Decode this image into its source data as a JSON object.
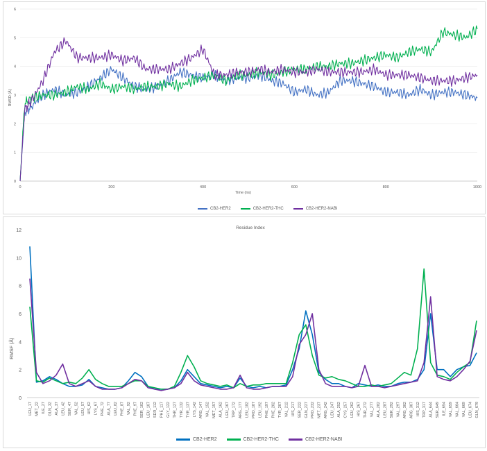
{
  "colors": {
    "cb2_her2": "#4472C4",
    "cb2_her2_thc": "#00B050",
    "cb2_her2_nabi": "#7030A0",
    "grid": "#e6e6e6",
    "axis": "#bfbfbf"
  },
  "chart_data": [
    {
      "type": "line",
      "xlabel": "Time (ns)",
      "ylabel": "RMSD (Å)",
      "xlim": [
        0,
        1000
      ],
      "ylim": [
        0,
        6
      ],
      "xticks": [
        "0",
        "200",
        "400",
        "600",
        "800",
        "1000"
      ],
      "yticks": [
        "0",
        "1",
        "2",
        "3",
        "4",
        "5",
        "6"
      ],
      "legend_position": "bottom",
      "x": [
        0,
        10,
        25,
        50,
        75,
        100,
        125,
        150,
        175,
        200,
        225,
        250,
        275,
        300,
        325,
        350,
        375,
        400,
        425,
        450,
        475,
        500,
        525,
        550,
        575,
        600,
        625,
        650,
        675,
        700,
        725,
        750,
        775,
        800,
        825,
        850,
        875,
        900,
        925,
        950,
        975,
        1000
      ],
      "series": [
        {
          "name": "CB2-HER2",
          "color_key": "cb2_her2",
          "values": [
            0.0,
            2.4,
            2.6,
            3.0,
            3.2,
            3.0,
            3.1,
            3.3,
            3.6,
            3.9,
            3.6,
            3.3,
            3.2,
            3.3,
            3.5,
            3.8,
            3.7,
            3.6,
            3.7,
            3.5,
            3.6,
            3.6,
            3.7,
            3.5,
            3.4,
            3.1,
            3.2,
            3.0,
            3.1,
            3.5,
            3.5,
            3.4,
            3.3,
            3.1,
            3.1,
            3.0,
            3.2,
            3.0,
            3.1,
            3.1,
            3.0,
            2.9
          ]
        },
        {
          "name": "CB2-HER2-THC",
          "color_key": "cb2_her2_thc",
          "values": [
            0.0,
            2.7,
            2.9,
            3.0,
            3.0,
            3.1,
            3.3,
            3.2,
            3.4,
            3.2,
            3.3,
            3.2,
            3.3,
            3.3,
            3.4,
            3.3,
            3.5,
            3.6,
            3.7,
            3.5,
            3.7,
            3.7,
            3.8,
            3.7,
            3.8,
            3.9,
            3.9,
            4.0,
            4.0,
            4.1,
            4.1,
            4.2,
            4.3,
            4.4,
            4.3,
            4.5,
            4.6,
            4.5,
            5.2,
            5.1,
            5.0,
            5.3
          ]
        },
        {
          "name": "CB2-HER2-NABI",
          "color_key": "cb2_her2_nabi",
          "values": [
            0.0,
            2.5,
            2.8,
            3.5,
            4.5,
            4.9,
            4.3,
            4.3,
            4.3,
            4.4,
            4.2,
            4.3,
            3.9,
            3.9,
            3.9,
            4.1,
            4.3,
            4.6,
            3.7,
            3.7,
            3.8,
            3.8,
            3.9,
            3.8,
            3.9,
            3.8,
            3.8,
            3.9,
            3.8,
            3.8,
            3.8,
            3.8,
            3.9,
            3.7,
            3.7,
            3.7,
            3.6,
            3.5,
            3.5,
            3.5,
            3.6,
            3.7
          ]
        }
      ]
    },
    {
      "type": "line",
      "xlabel": "Residue Index",
      "ylabel": "RMSF (Å)",
      "ylim": [
        0,
        12
      ],
      "yticks": [
        "0",
        "2",
        "4",
        "6",
        "8",
        "10",
        "12"
      ],
      "legend_position": "bottom",
      "categories": [
        "LEU_17",
        "MET_22",
        "ILE_27",
        "GLN_32",
        "ALA_37",
        "LEU_42",
        "SER_47",
        "VAL_52",
        "LEU_57",
        "HIS_62",
        "LYS_67",
        "PHE_72",
        "ALA_77",
        "LEU_82",
        "PHE_87",
        "VAL_92",
        "PHE_97",
        "SER_102",
        "LEU_107",
        "SER_112",
        "PHE_117",
        "GLY_122",
        "THR_127",
        "TYR_132",
        "TYR_137",
        "LYS_142",
        "ARG_147",
        "VAL_152",
        "MET_157",
        "ALA_162",
        "LEU_167",
        "TRP_172",
        "ARG_177",
        "LEU_182",
        "PRO_187",
        "LEU_192",
        "PHE_197",
        "PHE_202",
        "TYR_207",
        "VAL_212",
        "HIS_217",
        "SER_222",
        "GLN_227",
        "PRO_232",
        "MET_237",
        "ARG_242",
        "LEU_247",
        "ALA_252",
        "CYS_257",
        "LEU_262",
        "HIS_267",
        "THR_272",
        "VAL_277",
        "ALA_282",
        "LEU_287",
        "SER_292",
        "VAL_297",
        "ARG_302",
        "ARG_307",
        "HIS_312",
        "TRP_317",
        "ALA_644",
        "SER_649",
        "ILE_654",
        "VAL_659",
        "VAL_664",
        "VAL_669",
        "LEU_674",
        "GLN_679"
      ],
      "series": [
        {
          "name": "CB2-HER2",
          "color_key": "cb2_her2",
          "values": [
            10.8,
            1.1,
            1.2,
            1.5,
            1.3,
            1.0,
            0.8,
            0.8,
            0.9,
            1.3,
            0.8,
            0.7,
            0.6,
            0.6,
            0.7,
            1.2,
            1.8,
            1.5,
            0.8,
            0.6,
            0.6,
            0.6,
            0.7,
            1.2,
            2.0,
            1.5,
            1.0,
            0.9,
            0.8,
            0.7,
            0.8,
            0.7,
            1.4,
            0.8,
            0.7,
            0.8,
            0.7,
            0.8,
            0.8,
            0.9,
            2.0,
            3.5,
            6.2,
            4.5,
            1.8,
            1.3,
            1.0,
            1.0,
            0.8,
            0.7,
            1.0,
            0.9,
            0.8,
            0.9,
            0.8,
            0.8,
            1.0,
            1.1,
            1.1,
            1.3,
            2.0,
            6.0,
            2.0,
            2.0,
            1.5,
            2.0,
            2.2,
            2.3,
            3.2
          ]
        },
        {
          "name": "CB2-HER2-THC",
          "color_key": "cb2_her2_thc",
          "values": [
            6.5,
            1.2,
            1.1,
            1.4,
            1.2,
            1.0,
            1.1,
            1.0,
            1.4,
            2.0,
            1.3,
            1.0,
            0.8,
            0.8,
            0.8,
            1.0,
            1.2,
            1.2,
            0.8,
            0.7,
            0.6,
            0.6,
            0.8,
            1.8,
            3.0,
            2.2,
            1.2,
            1.0,
            0.9,
            0.8,
            0.9,
            0.7,
            1.0,
            0.8,
            0.9,
            0.9,
            1.0,
            1.0,
            1.0,
            1.0,
            2.5,
            4.5,
            5.2,
            3.0,
            1.6,
            1.4,
            1.5,
            1.3,
            1.2,
            1.0,
            0.8,
            0.8,
            0.9,
            0.8,
            0.9,
            1.0,
            1.4,
            1.8,
            1.6,
            3.5,
            9.2,
            2.5,
            1.6,
            1.5,
            1.3,
            1.8,
            2.2,
            2.5,
            5.5
          ]
        },
        {
          "name": "CB2-HER2-NABI",
          "color_key": "cb2_her2_nabi",
          "values": [
            8.5,
            1.8,
            1.0,
            1.2,
            1.6,
            2.4,
            1.0,
            0.8,
            1.0,
            1.2,
            0.8,
            0.6,
            0.6,
            0.6,
            0.7,
            1.0,
            1.3,
            1.2,
            0.7,
            0.6,
            0.5,
            0.6,
            0.7,
            1.0,
            1.8,
            1.2,
            0.9,
            0.8,
            0.7,
            0.6,
            0.6,
            0.7,
            1.6,
            0.7,
            0.6,
            0.6,
            0.7,
            0.8,
            0.8,
            0.8,
            1.5,
            3.8,
            4.5,
            6.0,
            2.0,
            1.0,
            0.8,
            0.8,
            0.8,
            0.7,
            0.8,
            2.3,
            0.8,
            0.8,
            0.7,
            0.8,
            0.9,
            1.0,
            1.1,
            1.2,
            2.5,
            7.2,
            1.5,
            1.3,
            1.2,
            1.5,
            2.0,
            2.6,
            4.8
          ]
        }
      ]
    }
  ]
}
